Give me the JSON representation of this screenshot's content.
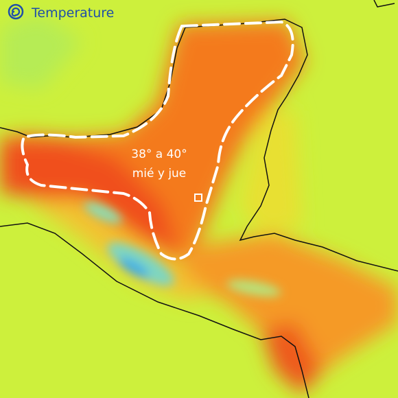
{
  "header": {
    "title": "Temperature"
  },
  "annotation": {
    "lines": [
      "38° a 40°",
      "mié y jue"
    ]
  }
}
